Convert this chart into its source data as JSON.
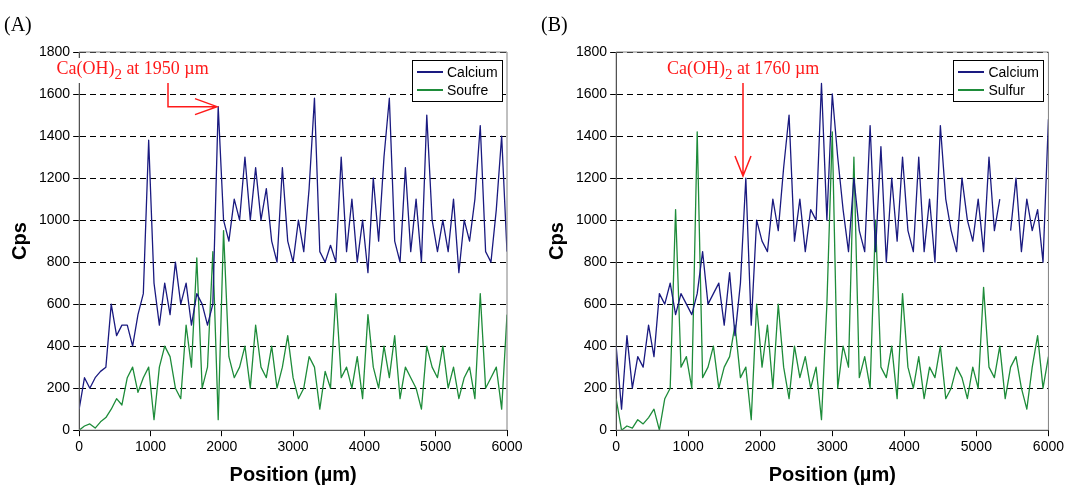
{
  "chart_data": [
    {
      "type": "line",
      "title": "(A)",
      "xlabel": "Position (µm)",
      "ylabel": "Cps",
      "x": [
        0,
        75,
        150,
        225,
        300,
        375,
        450,
        525,
        600,
        675,
        750,
        825,
        900,
        975,
        1050,
        1125,
        1200,
        1275,
        1350,
        1425,
        1500,
        1575,
        1650,
        1725,
        1800,
        1875,
        1950,
        2025,
        2100,
        2175,
        2250,
        2325,
        2400,
        2475,
        2550,
        2625,
        2700,
        2775,
        2850,
        2925,
        3000,
        3075,
        3150,
        3225,
        3300,
        3375,
        3450,
        3525,
        3600,
        3675,
        3750,
        3825,
        3900,
        3975,
        4050,
        4125,
        4200,
        4275,
        4350,
        4425,
        4500,
        4575,
        4650,
        4725,
        4800,
        4875,
        4950,
        5025,
        5100,
        5175,
        5250,
        5325,
        5400,
        5475,
        5550,
        5625,
        5700,
        5775,
        5850,
        5925,
        6000
      ],
      "series": [
        {
          "name": "Calcium",
          "color": "#1a1a80",
          "values": [
            100,
            250,
            200,
            250,
            280,
            300,
            600,
            450,
            500,
            500,
            400,
            550,
            650,
            1380,
            700,
            500,
            700,
            550,
            800,
            600,
            700,
            500,
            650,
            600,
            500,
            600,
            1540,
            1000,
            900,
            1100,
            1000,
            1300,
            1000,
            1250,
            1000,
            1150,
            900,
            800,
            1250,
            900,
            800,
            1000,
            850,
            1150,
            1580,
            850,
            800,
            880,
            800,
            1300,
            850,
            1100,
            800,
            1000,
            750,
            1200,
            900,
            1300,
            1580,
            900,
            800,
            1250,
            850,
            1100,
            800,
            1500,
            1000,
            850,
            1000,
            850,
            1100,
            750,
            1000,
            900,
            1100,
            1450,
            850,
            800,
            1050,
            1400,
            850
          ]
        },
        {
          "name": "Soufre",
          "color": "#1e8c3a",
          "values": [
            0,
            20,
            30,
            10,
            40,
            60,
            100,
            150,
            120,
            250,
            300,
            180,
            250,
            300,
            50,
            300,
            400,
            350,
            200,
            150,
            500,
            300,
            820,
            200,
            300,
            850,
            50,
            950,
            350,
            250,
            300,
            400,
            200,
            500,
            300,
            250,
            400,
            200,
            300,
            450,
            250,
            150,
            200,
            350,
            300,
            100,
            280,
            200,
            650,
            250,
            300,
            200,
            350,
            150,
            550,
            300,
            200,
            400,
            250,
            450,
            150,
            300,
            250,
            200,
            100,
            400,
            300,
            250,
            400,
            200,
            300,
            150,
            250,
            300,
            150,
            650,
            200,
            250,
            300,
            100,
            550
          ]
        }
      ],
      "xlim": [
        0,
        6000
      ],
      "xticks": [
        0,
        1000,
        2000,
        3000,
        4000,
        5000,
        6000
      ],
      "ylim": [
        0,
        1800
      ],
      "yticks": [
        0,
        200,
        400,
        600,
        800,
        1000,
        1200,
        1400,
        1600,
        1800
      ],
      "grid": "y",
      "legend": "top right",
      "marker": "none",
      "line_style": "solid",
      "annotations": [
        {
          "text": "Ca(OH)$_{2}$ at 1950 µm",
          "x": 1950,
          "y": 1540
        }
      ]
    },
    {
      "type": "line",
      "title": "(B)",
      "xlabel": "Position (µm)",
      "ylabel": "Cps",
      "x": [
        0,
        75,
        150,
        225,
        300,
        375,
        450,
        525,
        600,
        675,
        750,
        825,
        900,
        975,
        1050,
        1125,
        1200,
        1275,
        1350,
        1425,
        1500,
        1575,
        1650,
        1725,
        1800,
        1875,
        1950,
        2025,
        2100,
        2175,
        2250,
        2325,
        2400,
        2475,
        2550,
        2625,
        2700,
        2775,
        2850,
        2925,
        3000,
        3075,
        3150,
        3225,
        3300,
        3375,
        3450,
        3525,
        3600,
        3675,
        3750,
        3825,
        3900,
        3975,
        4050,
        4125,
        4200,
        4275,
        4350,
        4425,
        4500,
        4575,
        4650,
        4725,
        4800,
        4875,
        4950,
        5025,
        5100,
        5175,
        5250,
        5325,
        5400,
        5475,
        5550,
        5625,
        5700,
        5775,
        5850,
        5925,
        6000
      ],
      "series": [
        {
          "name": "Calcium",
          "color": "#1a1a80",
          "values": [
            400,
            100,
            450,
            200,
            350,
            300,
            500,
            350,
            650,
            600,
            700,
            550,
            650,
            600,
            550,
            650,
            850,
            600,
            650,
            700,
            500,
            750,
            450,
            700,
            1200,
            500,
            1000,
            900,
            850,
            1100,
            950,
            1250,
            1500,
            900,
            1100,
            850,
            1050,
            1000,
            1650,
            1000,
            1600,
            1300,
            1050,
            850,
            1200,
            950,
            850,
            1450,
            850,
            1350,
            800,
            1200,
            900,
            1300,
            950,
            850,
            1300,
            850,
            1100,
            800,
            1450,
            1100,
            950,
            850,
            1200,
            1000,
            900,
            1100,
            850,
            1300,
            950,
            1100,
            null,
            950,
            1200,
            850,
            1100,
            950,
            1050,
            800,
            1480
          ]
        },
        {
          "name": "Sulfur",
          "color": "#1e8c3a",
          "values": [
            150,
            0,
            20,
            10,
            50,
            30,
            60,
            100,
            0,
            150,
            200,
            1050,
            300,
            350,
            200,
            1420,
            250,
            300,
            400,
            200,
            300,
            350,
            500,
            250,
            300,
            50,
            600,
            300,
            500,
            200,
            600,
            300,
            150,
            400,
            250,
            350,
            200,
            300,
            50,
            600,
            1420,
            200,
            400,
            300,
            1300,
            250,
            350,
            200,
            1000,
            300,
            250,
            400,
            150,
            650,
            300,
            200,
            350,
            150,
            300,
            250,
            400,
            150,
            200,
            300,
            250,
            150,
            300,
            200,
            680,
            300,
            250,
            400,
            150,
            300,
            350,
            200,
            100,
            300,
            450,
            200,
            350
          ]
        }
      ],
      "xlim": [
        0,
        6000
      ],
      "xticks": [
        0,
        1000,
        2000,
        3000,
        4000,
        5000,
        6000
      ],
      "ylim": [
        0,
        1800
      ],
      "yticks": [
        0,
        200,
        400,
        600,
        800,
        1000,
        1200,
        1400,
        1600,
        1800
      ],
      "grid": "y",
      "legend": "top right",
      "marker": "none",
      "line_style": "solid",
      "annotations": [
        {
          "text": "Ca(OH)$_{2}$ at 1760 µm",
          "x": 1760,
          "y": 1200
        }
      ]
    }
  ]
}
